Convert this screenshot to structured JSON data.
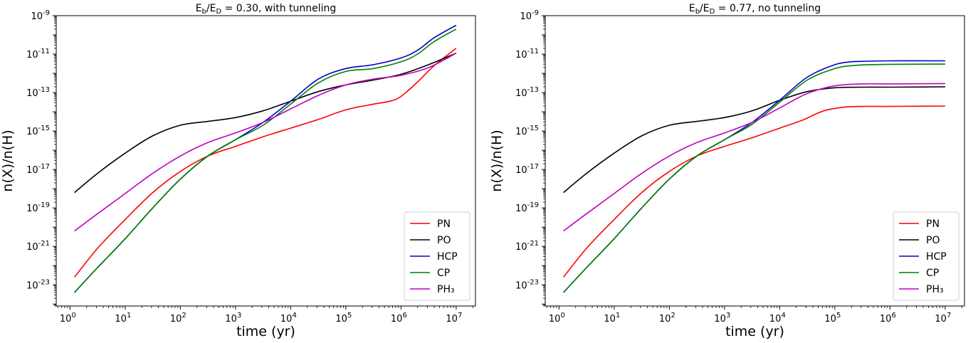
{
  "chart_data": [
    {
      "type": "line",
      "title": "E_b/E_D = 0.30,    with tunneling",
      "title_parts": {
        "e": "E",
        "b": "b",
        "slash": "/E",
        "d": "D",
        "rest": " = 0.30,    with tunneling"
      },
      "xlabel": "time (yr)",
      "ylabel": "n(X)/n(H)",
      "xscale": "log",
      "yscale": "log",
      "xlim_exp": [
        -0.25,
        7.35
      ],
      "ylim_exp": [
        -24.1,
        -9
      ],
      "xtick_exps": [
        0,
        1,
        2,
        3,
        4,
        5,
        6,
        7
      ],
      "ytick_exps": [
        -23,
        -21,
        -19,
        -17,
        -15,
        -13,
        -11,
        -9
      ],
      "legend_position": "lower-right",
      "series": [
        {
          "name": "PN",
          "color": "#ff0000",
          "log_x": [
            0.08,
            0.5,
            1,
            1.5,
            2,
            2.5,
            3,
            3.5,
            4,
            4.5,
            5,
            5.5,
            5.8,
            6,
            6.3,
            6.6,
            7
          ],
          "log_y": [
            -22.6,
            -21.1,
            -19.6,
            -18.2,
            -17.1,
            -16.3,
            -15.8,
            -15.3,
            -14.85,
            -14.4,
            -13.9,
            -13.6,
            -13.45,
            -13.2,
            -12.45,
            -11.6,
            -10.7
          ]
        },
        {
          "name": "PO",
          "color": "#000000",
          "log_x": [
            0.08,
            0.5,
            1,
            1.5,
            2,
            2.5,
            3,
            3.5,
            4,
            4.5,
            5,
            5.5,
            6,
            6.5,
            7
          ],
          "log_y": [
            -18.2,
            -17.2,
            -16.15,
            -15.25,
            -14.7,
            -14.5,
            -14.3,
            -13.95,
            -13.45,
            -12.95,
            -12.6,
            -12.35,
            -12.05,
            -11.55,
            -10.95
          ]
        },
        {
          "name": "HCP",
          "color": "#0000cc",
          "log_x": [
            0.08,
            0.5,
            1,
            1.5,
            2,
            2.5,
            3,
            3.5,
            4,
            4.5,
            5,
            5.5,
            6,
            6.3,
            6.6,
            7
          ],
          "log_y": [
            -23.4,
            -22.1,
            -20.6,
            -19.0,
            -17.5,
            -16.3,
            -15.45,
            -14.55,
            -13.45,
            -12.3,
            -11.75,
            -11.55,
            -11.2,
            -10.8,
            -10.15,
            -9.5
          ]
        },
        {
          "name": "CP",
          "color": "#008000",
          "log_x": [
            0.08,
            0.5,
            1,
            1.5,
            2,
            2.5,
            3,
            3.5,
            4,
            4.5,
            5,
            5.5,
            6,
            6.3,
            6.6,
            7
          ],
          "log_y": [
            -23.4,
            -22.1,
            -20.6,
            -19.0,
            -17.5,
            -16.3,
            -15.45,
            -14.7,
            -13.6,
            -12.5,
            -11.9,
            -11.75,
            -11.4,
            -11.0,
            -10.35,
            -9.7
          ]
        },
        {
          "name": "PH₃",
          "color": "#bf00bf",
          "log_x": [
            0.08,
            0.5,
            1,
            1.5,
            2,
            2.5,
            3,
            3.5,
            4,
            4.5,
            5,
            5.5,
            6,
            6.5,
            7
          ],
          "log_y": [
            -20.2,
            -19.3,
            -18.25,
            -17.2,
            -16.3,
            -15.6,
            -15.1,
            -14.55,
            -13.85,
            -13.15,
            -12.6,
            -12.3,
            -12.1,
            -11.7,
            -10.95
          ]
        }
      ]
    },
    {
      "type": "line",
      "title": "E_b/E_D = 0.77,    no tunneling",
      "title_parts": {
        "e": "E",
        "b": "b",
        "slash": "/E",
        "d": "D",
        "rest": " = 0.77,    no tunneling"
      },
      "xlabel": "time (yr)",
      "ylabel": "n(X)/n(H)",
      "xscale": "log",
      "yscale": "log",
      "xlim_exp": [
        -0.25,
        7.35
      ],
      "ylim_exp": [
        -24.1,
        -9
      ],
      "xtick_exps": [
        0,
        1,
        2,
        3,
        4,
        5,
        6,
        7
      ],
      "ytick_exps": [
        -23,
        -21,
        -19,
        -17,
        -15,
        -13,
        -11,
        -9
      ],
      "legend_position": "lower-right",
      "series": [
        {
          "name": "PN",
          "color": "#ff0000",
          "log_x": [
            0.08,
            0.5,
            1,
            1.5,
            2,
            2.5,
            3,
            3.5,
            4,
            4.4,
            4.8,
            5.2,
            5.6,
            6,
            7
          ],
          "log_y": [
            -22.6,
            -21.1,
            -19.6,
            -18.2,
            -17.1,
            -16.3,
            -15.8,
            -15.35,
            -14.85,
            -14.45,
            -13.95,
            -13.75,
            -13.72,
            -13.72,
            -13.7
          ]
        },
        {
          "name": "PO",
          "color": "#000000",
          "log_x": [
            0.08,
            0.5,
            1,
            1.5,
            2,
            2.5,
            3,
            3.5,
            4,
            4.5,
            5,
            5.5,
            6,
            7
          ],
          "log_y": [
            -18.2,
            -17.2,
            -16.15,
            -15.25,
            -14.7,
            -14.5,
            -14.3,
            -13.95,
            -13.4,
            -12.95,
            -12.75,
            -12.72,
            -12.72,
            -12.7
          ]
        },
        {
          "name": "HCP",
          "color": "#0000cc",
          "log_x": [
            0.08,
            0.5,
            1,
            1.5,
            2,
            2.5,
            3,
            3.5,
            4,
            4.5,
            5,
            5.3,
            5.6,
            6,
            7
          ],
          "log_y": [
            -23.4,
            -22.1,
            -20.6,
            -19.0,
            -17.5,
            -16.3,
            -15.45,
            -14.55,
            -13.4,
            -12.2,
            -11.55,
            -11.4,
            -11.37,
            -11.35,
            -11.35
          ]
        },
        {
          "name": "CP",
          "color": "#008000",
          "log_x": [
            0.08,
            0.5,
            1,
            1.5,
            2,
            2.5,
            3,
            3.5,
            4,
            4.5,
            5,
            5.3,
            5.6,
            6,
            7
          ],
          "log_y": [
            -23.4,
            -22.1,
            -20.6,
            -19.0,
            -17.5,
            -16.3,
            -15.45,
            -14.65,
            -13.5,
            -12.35,
            -11.75,
            -11.6,
            -11.55,
            -11.53,
            -11.52
          ]
        },
        {
          "name": "PH₃",
          "color": "#bf00bf",
          "log_x": [
            0.08,
            0.5,
            1,
            1.5,
            2,
            2.5,
            3,
            3.5,
            4,
            4.5,
            5,
            5.5,
            6,
            7
          ],
          "log_y": [
            -20.2,
            -19.3,
            -18.25,
            -17.2,
            -16.3,
            -15.6,
            -15.1,
            -14.55,
            -13.8,
            -13.05,
            -12.65,
            -12.55,
            -12.55,
            -12.53
          ]
        }
      ]
    }
  ]
}
